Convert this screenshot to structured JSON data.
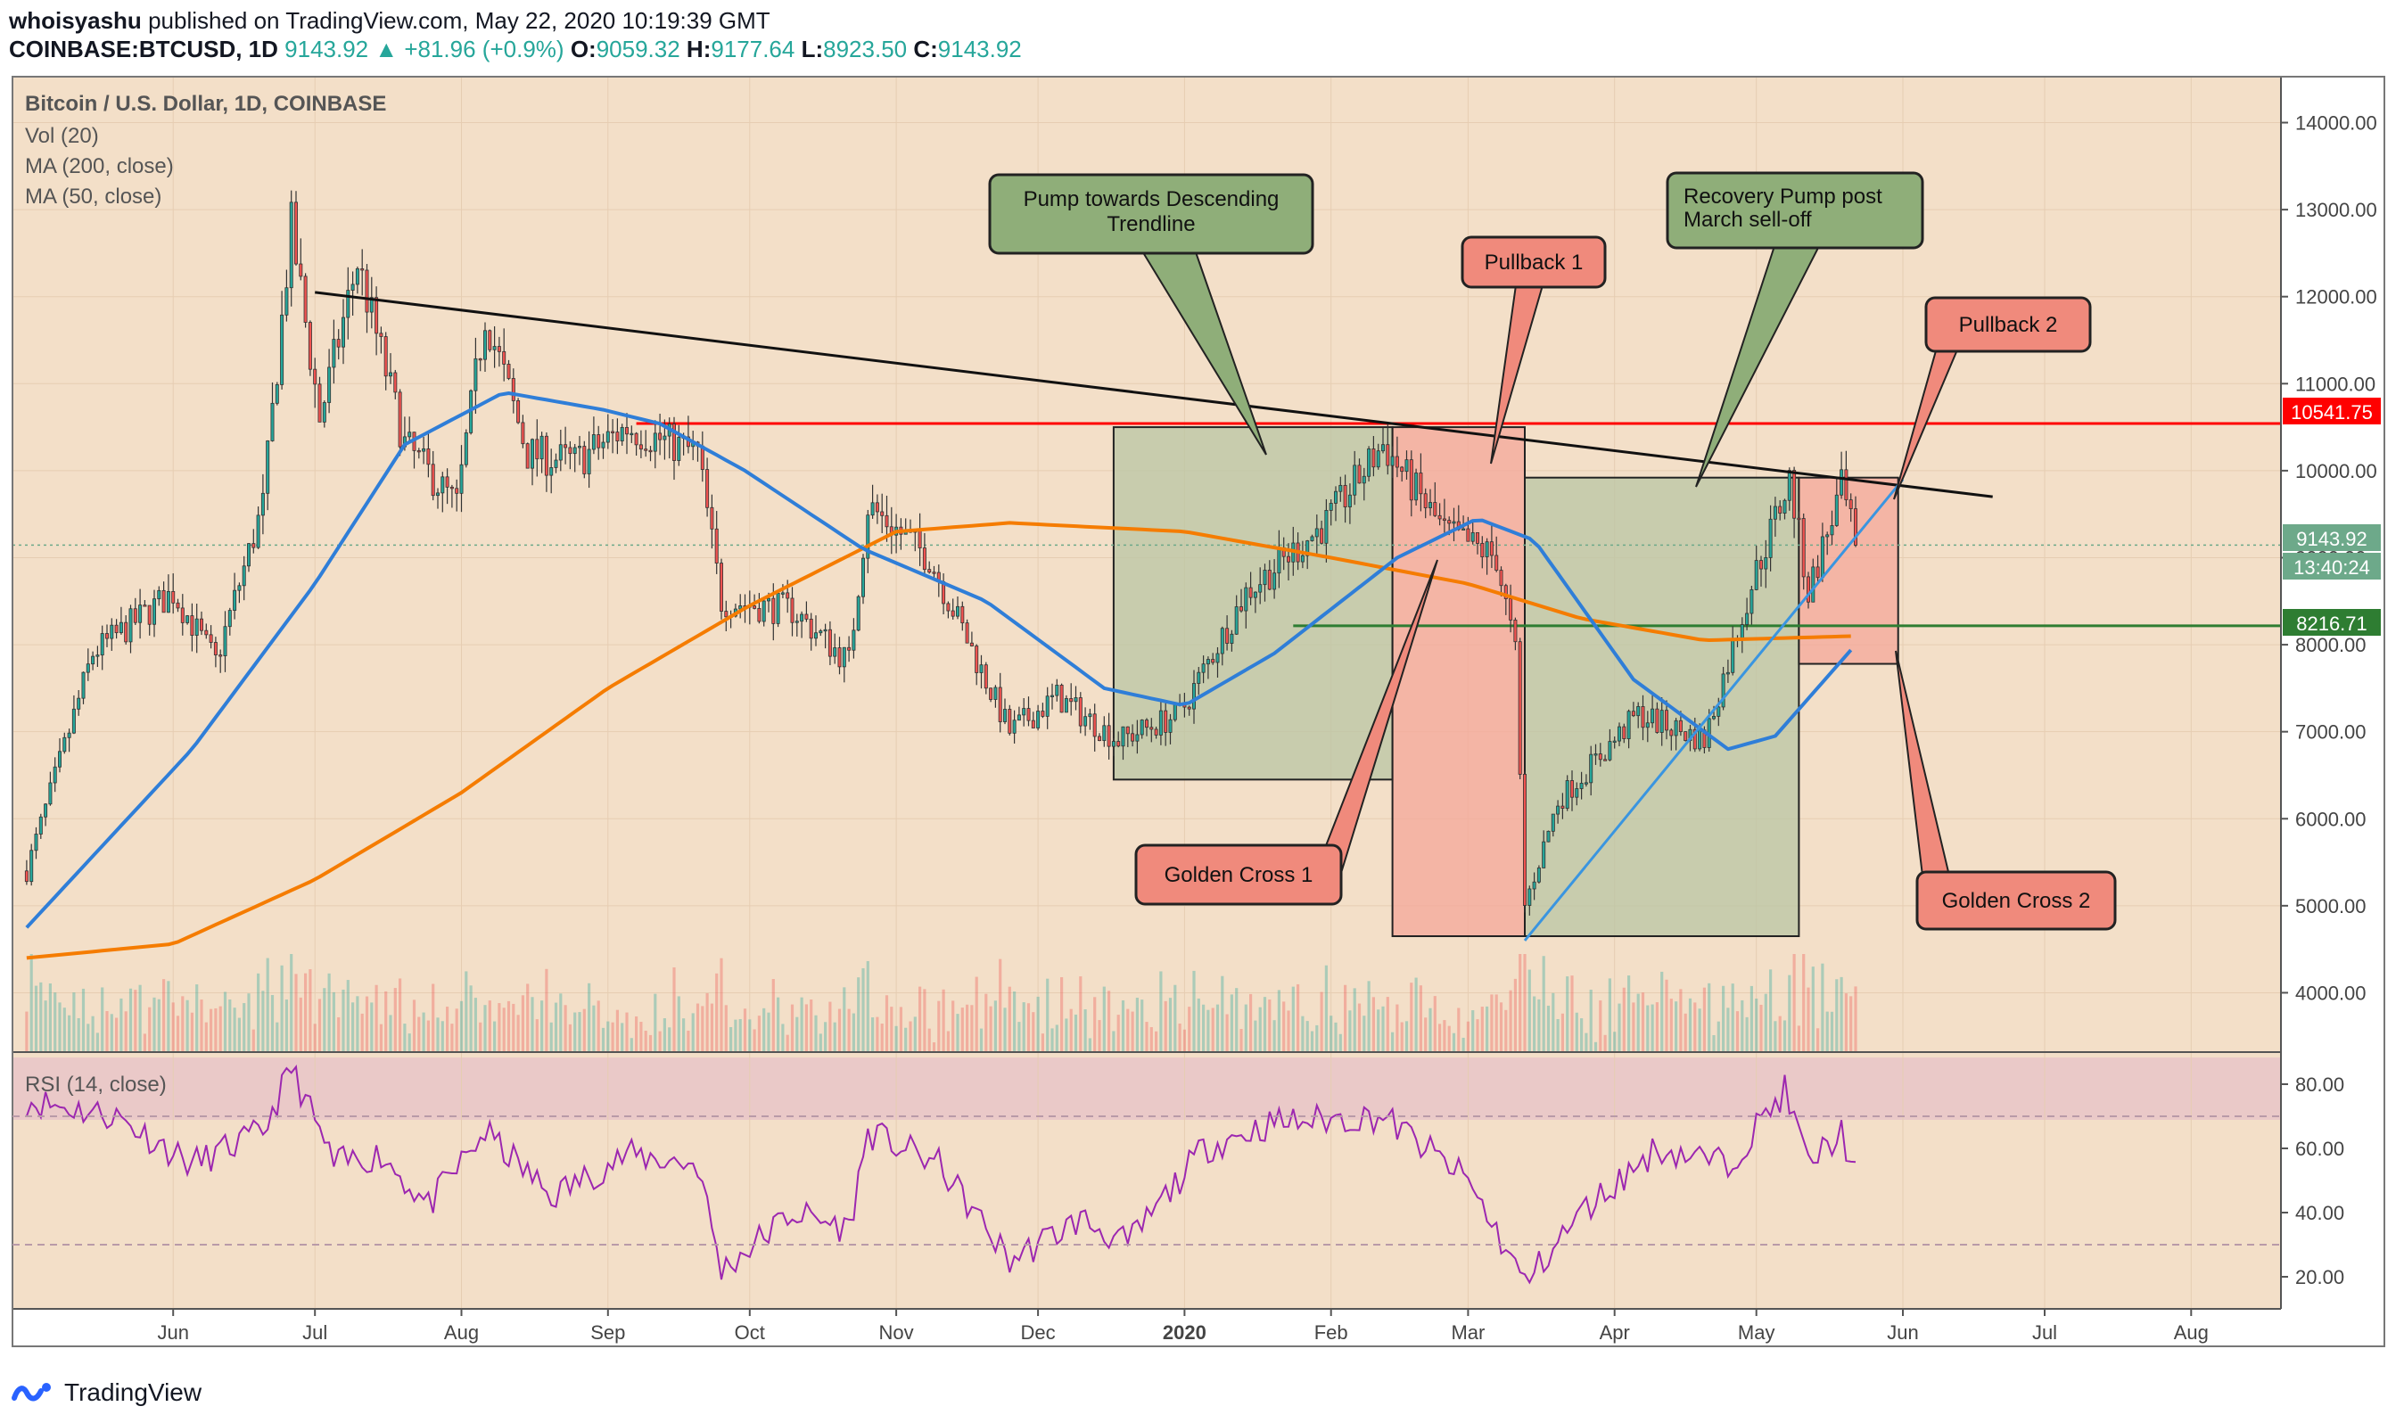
{
  "header": {
    "author": "whoisyashu",
    "published_text": "published on TradingView.com, May 22, 2020 10:19:39 GMT",
    "symbol": "COINBASE:BTCUSD, 1D",
    "last": "9143.92",
    "change": "▲ +81.96 (+0.9%)",
    "o_label": "O:",
    "o": "9059.32",
    "h_label": "H:",
    "h": "9177.64",
    "l_label": "L:",
    "l": "8923.50",
    "c_label": "C:",
    "c": "9143.92"
  },
  "legend": {
    "title": "Bitcoin / U.S. Dollar, 1D, COINBASE",
    "vol": "Vol (20)",
    "ma200": "MA (200, close)",
    "ma50": "MA (50, close)",
    "rsi": "RSI (14, close)"
  },
  "price_labels": {
    "resistance": "10541.75",
    "current": "9143.92",
    "countdown": "13:40:24",
    "support": "8216.71"
  },
  "annotations": {
    "pump": [
      "Pump towards Descending",
      "Trendline"
    ],
    "pullback1": "Pullback 1",
    "recovery": [
      "Recovery Pump post",
      "March sell-off"
    ],
    "pullback2": "Pullback 2",
    "golden1": "Golden Cross 1",
    "golden2": "Golden Cross 2"
  },
  "footer": {
    "brand": "TradingView"
  },
  "colors": {
    "background": "#f3dfc8",
    "up": "#26a69a",
    "down": "#ef5350",
    "ma50": "#2f7ed8",
    "ma200": "#f57c00",
    "resistance": "#ff0000",
    "support": "#2e7d32",
    "rsi": "#9c27b0",
    "green_box": "#b9c6a4",
    "red_box": "#f4a79a",
    "green_callout": "#8fae79",
    "red_callout": "#f08a7c"
  },
  "chart_data": {
    "type": "candlestick",
    "price_axis": {
      "ticks": [
        4000,
        5000,
        6000,
        7000,
        8000,
        9000,
        10000,
        11000,
        12000,
        13000,
        14000
      ],
      "range": [
        3400,
        14200
      ]
    },
    "rsi_axis": {
      "ticks": [
        20,
        40,
        60,
        80
      ],
      "range": [
        10,
        90
      ],
      "bands": [
        30,
        70
      ]
    },
    "time_axis": [
      "Jun",
      "Jul",
      "Aug",
      "Sep",
      "Oct",
      "Nov",
      "Dec",
      "2020",
      "Feb",
      "Mar",
      "Apr",
      "May",
      "Jun",
      "Jul",
      "Aug"
    ],
    "price_path": [
      [
        "2019-05-01",
        5400
      ],
      [
        "2019-05-15",
        7900
      ],
      [
        "2019-06-01",
        8600
      ],
      [
        "2019-06-10",
        7800
      ],
      [
        "2019-06-20",
        9600
      ],
      [
        "2019-06-26",
        12800
      ],
      [
        "2019-07-02",
        10600
      ],
      [
        "2019-07-10",
        12400
      ],
      [
        "2019-07-20",
        10300
      ],
      [
        "2019-07-31",
        9600
      ],
      [
        "2019-08-06",
        11800
      ],
      [
        "2019-08-15",
        10200
      ],
      [
        "2019-08-25",
        10100
      ],
      [
        "2019-09-05",
        10500
      ],
      [
        "2019-09-20",
        10200
      ],
      [
        "2019-09-25",
        8500
      ],
      [
        "2019-10-10",
        8400
      ],
      [
        "2019-10-22",
        7800
      ],
      [
        "2019-10-26",
        9600
      ],
      [
        "2019-11-08",
        9000
      ],
      [
        "2019-11-25",
        7000
      ],
      [
        "2019-12-05",
        7400
      ],
      [
        "2019-12-18",
        6900
      ],
      [
        "2019-12-31",
        7200
      ],
      [
        "2020-01-14",
        8600
      ],
      [
        "2020-01-31",
        9400
      ],
      [
        "2020-02-12",
        10300
      ],
      [
        "2020-02-25",
        9300
      ],
      [
        "2020-03-07",
        9000
      ],
      [
        "2020-03-11",
        7900
      ],
      [
        "2020-03-13",
        5000
      ],
      [
        "2020-03-20",
        6200
      ],
      [
        "2020-04-06",
        7200
      ],
      [
        "2020-04-20",
        6900
      ],
      [
        "2020-04-30",
        8700
      ],
      [
        "2020-05-08",
        9900
      ],
      [
        "2020-05-12",
        8600
      ],
      [
        "2020-05-19",
        9800
      ],
      [
        "2020-05-22",
        9143.92
      ]
    ],
    "ma50_path": [
      [
        "2019-05-01",
        4750
      ],
      [
        "2019-06-05",
        6800
      ],
      [
        "2019-07-01",
        8700
      ],
      [
        "2019-07-20",
        10300
      ],
      [
        "2019-08-10",
        10900
      ],
      [
        "2019-08-31",
        10700
      ],
      [
        "2019-09-12",
        10540
      ],
      [
        "2019-09-30",
        10000
      ],
      [
        "2019-10-25",
        9100
      ],
      [
        "2019-11-20",
        8500
      ],
      [
        "2019-12-15",
        7500
      ],
      [
        "2020-01-01",
        7300
      ],
      [
        "2020-01-20",
        7900
      ],
      [
        "2020-02-15",
        9000
      ],
      [
        "2020-03-03",
        9450
      ],
      [
        "2020-03-15",
        9200
      ],
      [
        "2020-04-05",
        7600
      ],
      [
        "2020-04-25",
        6800
      ],
      [
        "2020-05-05",
        6950
      ],
      [
        "2020-05-22",
        8000
      ]
    ],
    "ma200_path": [
      [
        "2019-05-01",
        4400
      ],
      [
        "2019-06-01",
        4560
      ],
      [
        "2019-07-01",
        5300
      ],
      [
        "2019-08-01",
        6300
      ],
      [
        "2019-09-01",
        7500
      ],
      [
        "2019-10-01",
        8450
      ],
      [
        "2019-11-01",
        9300
      ],
      [
        "2019-11-25",
        9400
      ],
      [
        "2020-01-01",
        9300
      ],
      [
        "2020-02-01",
        9000
      ],
      [
        "2020-03-01",
        8700
      ],
      [
        "2020-03-25",
        8300
      ],
      [
        "2020-04-20",
        8050
      ],
      [
        "2020-05-22",
        8100
      ]
    ],
    "rsi_path": [
      [
        "2019-05-01",
        75
      ],
      [
        "2019-05-20",
        70
      ],
      [
        "2019-06-05",
        55
      ],
      [
        "2019-06-20",
        65
      ],
      [
        "2019-06-26",
        85
      ],
      [
        "2019-07-05",
        55
      ],
      [
        "2019-07-15",
        58
      ],
      [
        "2019-07-25",
        42
      ],
      [
        "2019-08-06",
        65
      ],
      [
        "2019-08-20",
        45
      ],
      [
        "2019-09-05",
        58
      ],
      [
        "2019-09-20",
        55
      ],
      [
        "2019-09-25",
        22
      ],
      [
        "2019-10-10",
        40
      ],
      [
        "2019-10-22",
        35
      ],
      [
        "2019-10-26",
        65
      ],
      [
        "2019-11-10",
        55
      ],
      [
        "2019-11-25",
        25
      ],
      [
        "2019-12-10",
        38
      ],
      [
        "2019-12-20",
        30
      ],
      [
        "2020-01-05",
        60
      ],
      [
        "2020-01-20",
        68
      ],
      [
        "2020-02-12",
        70
      ],
      [
        "2020-03-01",
        50
      ],
      [
        "2020-03-13",
        18
      ],
      [
        "2020-03-25",
        40
      ],
      [
        "2020-04-10",
        60
      ],
      [
        "2020-04-25",
        55
      ],
      [
        "2020-05-07",
        78
      ],
      [
        "2020-05-12",
        55
      ],
      [
        "2020-05-19",
        65
      ],
      [
        "2020-05-22",
        52
      ]
    ],
    "resistance_level": 10541.75,
    "support_level": 8216.71,
    "descending_trendline": [
      [
        "2019-07-01",
        12050
      ],
      [
        "2020-06-20",
        9700
      ]
    ],
    "ascending_trendline": [
      [
        "2020-03-13",
        4600
      ],
      [
        "2020-06-01",
        9900
      ]
    ],
    "zones": [
      {
        "kind": "green",
        "from": "2019-12-17",
        "to": "2020-02-14",
        "low": 6450,
        "high": 10500
      },
      {
        "kind": "red",
        "from": "2020-02-14",
        "to": "2020-03-13",
        "low": 4650,
        "high": 10500
      },
      {
        "kind": "green",
        "from": "2020-03-13",
        "to": "2020-05-10",
        "low": 4650,
        "high": 9920
      },
      {
        "kind": "red",
        "from": "2020-05-10",
        "to": "2020-05-31",
        "low": 7780,
        "high": 9920
      }
    ]
  }
}
